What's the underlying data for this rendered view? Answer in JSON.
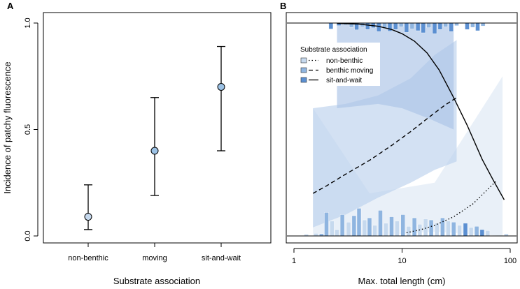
{
  "colors": {
    "point_fill": "#9cc2e5",
    "nb": "#c6d9ee",
    "bm": "#8fb5e0",
    "sw": "#5b8fd1",
    "band_nb": "#dde8f5",
    "band_bm": "#bcd1ec",
    "band_sw": "#aac3e6"
  },
  "chart_data": [
    {
      "panel": "A",
      "type": "scatter",
      "ylabel": "Incidence of patchy fluorescence",
      "xlabel": "Substrate association",
      "ylim": [
        0,
        1
      ],
      "yticks": [
        "0.0",
        "0.5",
        "1.0"
      ],
      "categories": [
        "non-benthic",
        "moving",
        "sit-and-wait"
      ],
      "points": [
        {
          "category": "non-benthic",
          "estimate": 0.09,
          "lower": 0.03,
          "upper": 0.24
        },
        {
          "category": "moving",
          "estimate": 0.4,
          "lower": 0.19,
          "upper": 0.65
        },
        {
          "category": "sit-and-wait",
          "estimate": 0.7,
          "lower": 0.4,
          "upper": 0.89
        }
      ]
    },
    {
      "panel": "B",
      "type": "line",
      "xlabel": "Max. total length (cm)",
      "xscale": "log",
      "xlim": [
        1,
        100
      ],
      "xticks": [
        "1",
        "10",
        "100"
      ],
      "ylim": [
        0,
        1
      ],
      "legend": {
        "title": "Substrate association",
        "position": "top-left",
        "entries": [
          {
            "key": "nb",
            "label": "non-benthic",
            "style": "dotted"
          },
          {
            "key": "bm",
            "label": "benthic moving",
            "style": "dashed"
          },
          {
            "key": "sw",
            "label": "sit-and-wait",
            "style": "solid"
          }
        ]
      },
      "series": [
        {
          "key": "nb",
          "name": "non-benthic",
          "style": "dotted",
          "x": [
            11.0,
            15.0,
            20.0,
            30.0,
            45.0,
            75.0
          ],
          "y": [
            0.015,
            0.03,
            0.05,
            0.09,
            0.15,
            0.26
          ],
          "band": {
            "x": [
              1.5,
              5,
              20,
              85
            ],
            "lower": [
              0.0,
              0.0,
              0.02,
              0.0
            ],
            "upper": [
              0.6,
              0.2,
              0.25,
              0.75
            ]
          }
        },
        {
          "key": "bm",
          "name": "benthic moving",
          "style": "dashed",
          "x": [
            1.5,
            2.0,
            3.0,
            5.0,
            8.0,
            12.0,
            18.0,
            25.0,
            32.0
          ],
          "y": [
            0.2,
            0.235,
            0.29,
            0.355,
            0.425,
            0.49,
            0.56,
            0.615,
            0.65
          ],
          "band": {
            "x": [
              1.5,
              3,
              6,
              12,
              20,
              32
            ],
            "lower": [
              0.04,
              0.1,
              0.18,
              0.25,
              0.31,
              0.35
            ],
            "upper": [
              0.6,
              0.62,
              0.66,
              0.74,
              0.85,
              0.92
            ]
          }
        },
        {
          "key": "sw",
          "name": "sit-and-wait",
          "style": "solid",
          "x": [
            2.5,
            4.0,
            6.0,
            8.0,
            10.0,
            13.0,
            17.0,
            22.0,
            30.0,
            40.0,
            55.0,
            70.0,
            88.0
          ],
          "y": [
            0.998,
            0.995,
            0.985,
            0.97,
            0.95,
            0.915,
            0.86,
            0.78,
            0.65,
            0.52,
            0.36,
            0.26,
            0.17
          ],
          "band": {
            "x": [
              2.5,
              6,
              10,
              18,
              30
            ],
            "lower": [
              0.6,
              0.62,
              0.6,
              0.55,
              0.5
            ],
            "upper": [
              1.0,
              1.0,
              1.0,
              1.0,
              1.0
            ]
          }
        }
      ],
      "top_rug": [
        {
          "x": 2.2,
          "h": 0.028,
          "c": "sw"
        },
        {
          "x": 2.6,
          "h": 0.012,
          "c": "sw"
        },
        {
          "x": 3.0,
          "h": 0.008,
          "c": "sw"
        },
        {
          "x": 3.4,
          "h": 0.02,
          "c": "bm"
        },
        {
          "x": 3.8,
          "h": 0.032,
          "c": "sw"
        },
        {
          "x": 4.3,
          "h": 0.018,
          "c": "bm"
        },
        {
          "x": 4.8,
          "h": 0.03,
          "c": "sw"
        },
        {
          "x": 5.4,
          "h": 0.022,
          "c": "sw"
        },
        {
          "x": 6.1,
          "h": 0.04,
          "c": "sw"
        },
        {
          "x": 6.9,
          "h": 0.026,
          "c": "bm"
        },
        {
          "x": 7.7,
          "h": 0.038,
          "c": "sw"
        },
        {
          "x": 8.7,
          "h": 0.03,
          "c": "sw"
        },
        {
          "x": 9.8,
          "h": 0.018,
          "c": "bm"
        },
        {
          "x": 11.0,
          "h": 0.044,
          "c": "sw"
        },
        {
          "x": 12.4,
          "h": 0.028,
          "c": "bm"
        },
        {
          "x": 14.0,
          "h": 0.036,
          "c": "sw"
        },
        {
          "x": 15.7,
          "h": 0.046,
          "c": "sw"
        },
        {
          "x": 17.7,
          "h": 0.022,
          "c": "bm"
        },
        {
          "x": 20.0,
          "h": 0.05,
          "c": "sw"
        },
        {
          "x": 22.5,
          "h": 0.03,
          "c": "sw"
        },
        {
          "x": 25.3,
          "h": 0.018,
          "c": "bm"
        },
        {
          "x": 28.5,
          "h": 0.04,
          "c": "sw"
        },
        {
          "x": 32.0,
          "h": 0.012,
          "c": "bm"
        },
        {
          "x": 40.0,
          "h": 0.03,
          "c": "sw"
        },
        {
          "x": 45.0,
          "h": 0.02,
          "c": "bm"
        },
        {
          "x": 50.0,
          "h": 0.036,
          "c": "sw"
        },
        {
          "x": 56.0,
          "h": 0.014,
          "c": "bm"
        }
      ],
      "bottom_rug": [
        {
          "x": 1.3,
          "h": 0.008,
          "c": "nb"
        },
        {
          "x": 1.6,
          "h": 0.012,
          "c": "nb"
        },
        {
          "x": 1.8,
          "h": 0.01,
          "c": "bm"
        },
        {
          "x": 2.0,
          "h": 0.11,
          "c": "bm"
        },
        {
          "x": 2.25,
          "h": 0.07,
          "c": "nb"
        },
        {
          "x": 2.5,
          "h": 0.03,
          "c": "nb"
        },
        {
          "x": 2.8,
          "h": 0.1,
          "c": "bm"
        },
        {
          "x": 3.2,
          "h": 0.065,
          "c": "nb"
        },
        {
          "x": 3.6,
          "h": 0.095,
          "c": "bm"
        },
        {
          "x": 4.0,
          "h": 0.13,
          "c": "bm"
        },
        {
          "x": 4.5,
          "h": 0.075,
          "c": "nb"
        },
        {
          "x": 5.0,
          "h": 0.085,
          "c": "bm"
        },
        {
          "x": 5.6,
          "h": 0.05,
          "c": "nb"
        },
        {
          "x": 6.3,
          "h": 0.12,
          "c": "bm"
        },
        {
          "x": 7.1,
          "h": 0.06,
          "c": "nb"
        },
        {
          "x": 8.0,
          "h": 0.09,
          "c": "bm"
        },
        {
          "x": 9.0,
          "h": 0.07,
          "c": "nb"
        },
        {
          "x": 10.2,
          "h": 0.1,
          "c": "bm"
        },
        {
          "x": 11.5,
          "h": 0.045,
          "c": "nb"
        },
        {
          "x": 13.0,
          "h": 0.085,
          "c": "bm"
        },
        {
          "x": 14.6,
          "h": 0.055,
          "c": "nb"
        },
        {
          "x": 16.5,
          "h": 0.08,
          "c": "nb"
        },
        {
          "x": 18.6,
          "h": 0.075,
          "c": "bm"
        },
        {
          "x": 21.0,
          "h": 0.06,
          "c": "nb"
        },
        {
          "x": 23.7,
          "h": 0.085,
          "c": "bm"
        },
        {
          "x": 26.7,
          "h": 0.07,
          "c": "nb"
        },
        {
          "x": 30.0,
          "h": 0.065,
          "c": "bm"
        },
        {
          "x": 34.0,
          "h": 0.05,
          "c": "nb"
        },
        {
          "x": 38.5,
          "h": 0.06,
          "c": "sw"
        },
        {
          "x": 43.5,
          "h": 0.04,
          "c": "nb"
        },
        {
          "x": 49.0,
          "h": 0.045,
          "c": "bm"
        },
        {
          "x": 55.0,
          "h": 0.03,
          "c": "sw"
        },
        {
          "x": 62.0,
          "h": 0.025,
          "c": "nb"
        },
        {
          "x": 92.0,
          "h": 0.01,
          "c": "nb"
        }
      ]
    }
  ]
}
